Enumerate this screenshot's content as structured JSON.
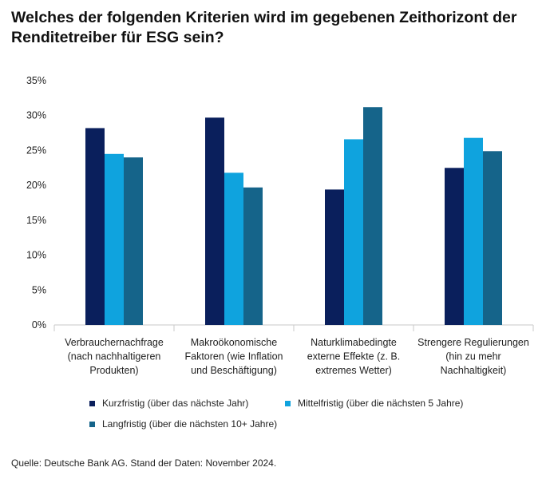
{
  "title": {
    "line1": "Welches der folgenden Kriterien wird im gegebenen Zeithorizont der",
    "line2": "Renditetreiber für ESG sein?"
  },
  "chart_data": {
    "type": "bar",
    "title": "Welches der folgenden Kriterien wird im gegebenen Zeithorizont der Renditetreiber für ESG sein?",
    "xlabel": "",
    "ylabel": "",
    "ylim": [
      0,
      35
    ],
    "yticks": [
      "0%",
      "5%",
      "10%",
      "15%",
      "20%",
      "25%",
      "30%",
      "35%"
    ],
    "grid": false,
    "legend_position": "bottom",
    "categories": [
      [
        "Verbrauchernachfrage",
        "(nach nachhaltigeren",
        "Produkten)"
      ],
      [
        "Makroökonomische",
        "Faktoren (wie Inflation",
        "und Beschäftigung)"
      ],
      [
        "Naturklimabedingte",
        "externe Effekte (z. B.",
        "extremes Wetter)"
      ],
      [
        "Strengere Regulierungen",
        "(hin zu mehr",
        "Nachhaltigkeit)"
      ]
    ],
    "series": [
      {
        "name": "Kurzfristig (über das nächste Jahr)",
        "color": "#0a1f5c",
        "values": [
          28.2,
          29.7,
          19.4,
          22.5
        ]
      },
      {
        "name": "Mittelfristig (über die nächsten 5 Jahre)",
        "color": "#0fa3de",
        "values": [
          24.5,
          21.8,
          26.6,
          26.8
        ]
      },
      {
        "name": "Langfristig (über die nächsten 10+ Jahre)",
        "color": "#15648a",
        "values": [
          24.0,
          19.7,
          31.2,
          24.9
        ]
      }
    ]
  },
  "source": "Quelle: Deutsche Bank AG. Stand der Daten: November 2024."
}
